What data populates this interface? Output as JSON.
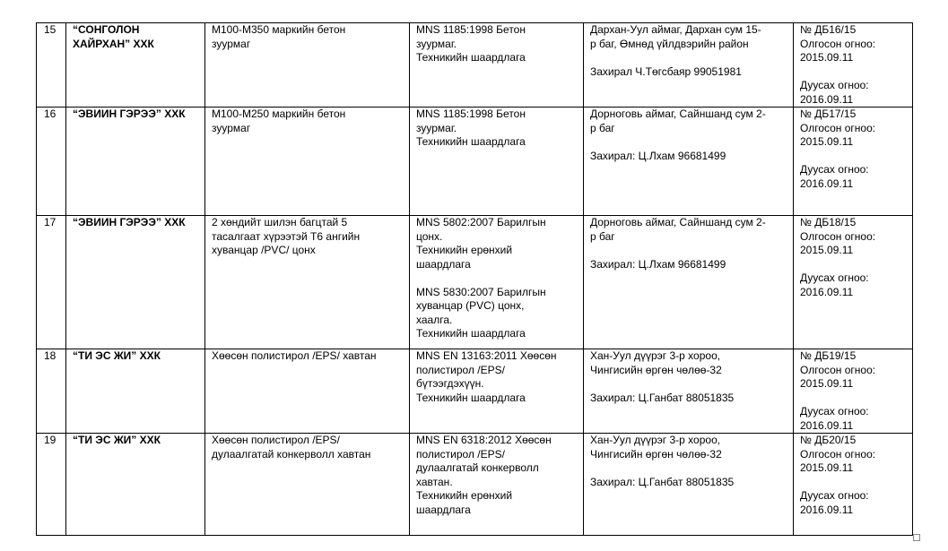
{
  "table": {
    "rows": [
      [
        "15",
        [
          [
            "“СОНГОЛОН",
            "ХАЙРХАН” ХХК"
          ]
        ],
        [
          [
            "М100-М350 маркийн бетон",
            "зуурмаг"
          ]
        ],
        [
          [
            "MNS 1185:1998 Бетон",
            "зуурмаг.",
            "Техникийн шаардлага"
          ]
        ],
        [
          [
            "Дархан-Уул аймаг, Дархан сум 15-",
            "р баг, Өмнөд үйлдвэрийн район"
          ],
          [
            "Захирал Ч.Төгсбаяр 99051981"
          ]
        ],
        [
          [
            "№ ДБ16/15",
            "Олгосон огноо:",
            "2015.09.11"
          ],
          [
            "Дуусах огноо:",
            "2016.09.11"
          ]
        ]
      ],
      [
        "16",
        [
          [
            "“ЭВИИН ГЭРЭЭ” ХХК"
          ]
        ],
        [
          [
            "М100-М250 маркийн бетон",
            "зуурмаг"
          ]
        ],
        [
          [
            "MNS 1185:1998 Бетон",
            "зуурмаг.",
            "Техникийн шаардлага"
          ]
        ],
        [
          [
            "Дорноговь аймаг, Сайншанд сум 2-",
            "р баг"
          ],
          [
            "Захирал: Ц.Лхам 96681499"
          ]
        ],
        [
          [
            "№ ДБ17/15",
            "Олгосон огноо:",
            "2015.09.11"
          ],
          [
            "Дуусах огноо:",
            "2016.09.11"
          ]
        ]
      ],
      [
        "17",
        [
          [
            "“ЭВИИН ГЭРЭЭ” ХХК"
          ]
        ],
        [
          [
            "2 хөндийт шилэн багцтай 5",
            "тасалгаат хүрээтэй Т6 ангийн",
            "хуванцар /PVC/ цонх"
          ]
        ],
        [
          [
            "MNS 5802:2007 Барилгын",
            "цонх.",
            "Техникийн ерөнхий",
            "шаардлага"
          ],
          [
            "MNS 5830:2007 Барилгын",
            "хуванцар (PVC) цонх,",
            "хаалга.",
            "Техникийн шаардлага"
          ]
        ],
        [
          [
            "Дорноговь аймаг, Сайншанд сум 2-",
            "р баг"
          ],
          [
            "Захирал: Ц.Лхам 96681499"
          ]
        ],
        [
          [
            "№ ДБ18/15",
            "Олгосон огноо:",
            "2015.09.11"
          ],
          [
            "Дуусах огноо:",
            "2016.09.11"
          ]
        ]
      ],
      [
        "18",
        [
          [
            "“ТИ ЭС ЖИ” ХХК"
          ]
        ],
        [
          [
            "Хөөсөн полистирол /EPS/ хавтан"
          ]
        ],
        [
          [
            "MNS EN 13163:2011 Хөөсөн",
            "полистирол /EPS/",
            "бүтээгдэхүүн.",
            "Техникийн шаардлага"
          ]
        ],
        [
          [
            "Хан-Уул дүүрэг 3-р хороо,",
            "Чингисийн өргөн чөлөө-32"
          ],
          [
            "Захирал: Ц.Ганбат 88051835"
          ]
        ],
        [
          [
            "№ ДБ19/15",
            "Олгосон огноо:",
            "2015.09.11"
          ],
          [
            "Дуусах огноо:",
            "2016.09.11"
          ]
        ]
      ],
      [
        "19",
        [
          [
            "“ТИ ЭС ЖИ” ХХК"
          ]
        ],
        [
          [
            "Хөөсөн полистирол /EPS/",
            "дулаалгатай конкерволл хавтан"
          ]
        ],
        [
          [
            "MNS EN 6318:2012 Хөөсөн",
            "полистирол /EPS/",
            "дулаалгатай конкерволл",
            "хавтан.",
            "Техникийн ерөнхий",
            "шаардлага"
          ]
        ],
        [
          [
            "Хан-Уул дүүрэг 3-р хороо,",
            "Чингисийн өргөн чөлөө-32"
          ],
          [
            "Захирал: Ц.Ганбат 88051835"
          ]
        ],
        [
          [
            "№ ДБ20/15",
            "Олгосон огноо:",
            "2015.09.11"
          ],
          [
            "Дуусах огноо:",
            "2016.09.11"
          ]
        ]
      ]
    ]
  }
}
